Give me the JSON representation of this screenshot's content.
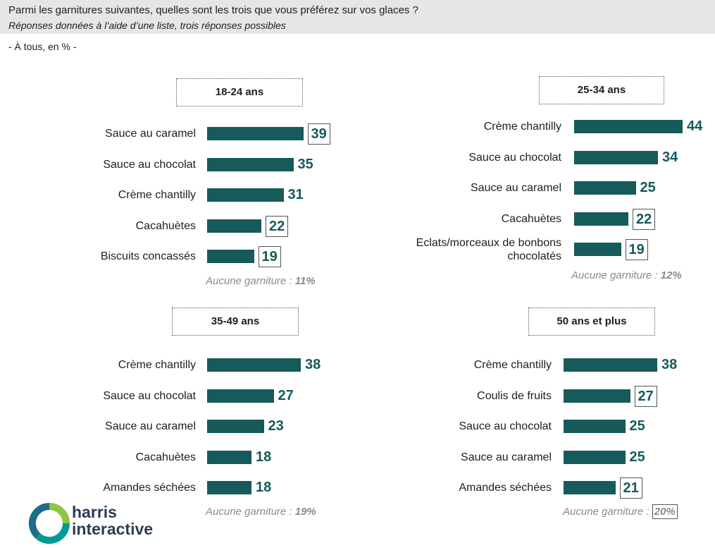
{
  "header": {
    "question": "Parmi les garnitures suivantes, quelles sont les trois que vous préférez sur vos glaces ?",
    "subtitle": "Réponses données à l’aide d’une liste, trois réponses possibles",
    "base": "- À tous, en % -"
  },
  "chart_data": [
    {
      "type": "bar",
      "title": "18-24 ans",
      "categories": [
        "Sauce au caramel",
        "Sauce au chocolat",
        "Crème chantilly",
        "Cacahuètes",
        "Biscuits concassés"
      ],
      "values": [
        39,
        35,
        31,
        22,
        19
      ],
      "boxed": [
        true,
        false,
        false,
        true,
        true
      ],
      "none_label": "Aucune garniture : ",
      "none_value": "11%",
      "none_boxed": false,
      "bar_color": "#175a5a"
    },
    {
      "type": "bar",
      "title": "25-34 ans",
      "categories": [
        "Crème chantilly",
        "Sauce au chocolat",
        "Sauce au caramel",
        "Cacahuètes",
        "Eclats/morceaux de bonbons chocolatés"
      ],
      "values": [
        44,
        34,
        25,
        22,
        19
      ],
      "boxed": [
        false,
        false,
        false,
        true,
        true
      ],
      "none_label": "Aucune garniture : ",
      "none_value": "12%",
      "none_boxed": false,
      "bar_color": "#175a5a"
    },
    {
      "type": "bar",
      "title": "35-49 ans",
      "categories": [
        "Crème chantilly",
        "Sauce au chocolat",
        "Sauce au caramel",
        "Cacahuètes",
        "Amandes séchées"
      ],
      "values": [
        38,
        27,
        23,
        18,
        18
      ],
      "boxed": [
        false,
        false,
        false,
        false,
        false
      ],
      "none_label": "Aucune garniture : ",
      "none_value": "19%",
      "none_boxed": false,
      "bar_color": "#175a5a"
    },
    {
      "type": "bar",
      "title": "50 ans et plus",
      "categories": [
        "Crème chantilly",
        "Coulis de fruits",
        "Sauce au chocolat",
        "Sauce au caramel",
        "Amandes séchées"
      ],
      "values": [
        38,
        27,
        25,
        25,
        21
      ],
      "boxed": [
        false,
        true,
        false,
        false,
        true
      ],
      "none_label": "Aucune garniture : ",
      "none_value": "20%",
      "none_boxed": true,
      "bar_color": "#175a5a"
    }
  ],
  "logo": {
    "line1": "harris",
    "line2": "interactive",
    "colors": [
      "#8dc63f",
      "#009a93",
      "#1e6b8a"
    ]
  }
}
